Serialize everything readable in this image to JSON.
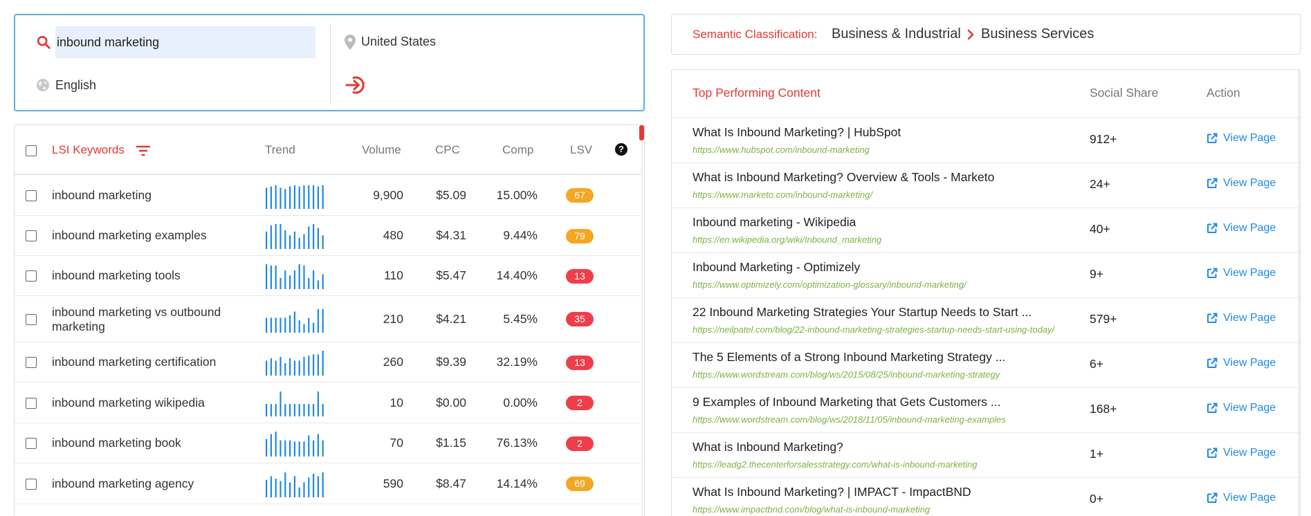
{
  "search": {
    "query": "inbound marketing",
    "location": "United States",
    "language": "English"
  },
  "lsi": {
    "headers": {
      "keywords": "LSI Keywords",
      "trend": "Trend",
      "volume": "Volume",
      "cpc": "CPC",
      "comp": "Comp",
      "lsv": "LSV"
    },
    "rows": [
      {
        "keyword": "inbound marketing",
        "volume": "9,900",
        "cpc": "$5.09",
        "comp": "15.00%",
        "lsv": "67",
        "lsv_color": "#f5a623",
        "trend": [
          0.85,
          0.9,
          0.95,
          0.85,
          0.8,
          0.9,
          0.95,
          0.9,
          0.95,
          0.95,
          0.95,
          0.9,
          0.95
        ]
      },
      {
        "keyword": "inbound marketing examples",
        "volume": "480",
        "cpc": "$4.31",
        "comp": "9.44%",
        "lsv": "79",
        "lsv_color": "#f5a623",
        "trend": [
          0.7,
          0.95,
          1.0,
          1.0,
          0.75,
          0.55,
          0.7,
          0.45,
          0.6,
          0.9,
          1.0,
          0.85,
          0.55
        ]
      },
      {
        "keyword": "inbound marketing tools",
        "volume": "110",
        "cpc": "$5.47",
        "comp": "14.40%",
        "lsv": "13",
        "lsv_color": "#ef3e4a",
        "trend": [
          1.0,
          0.95,
          0.95,
          0.45,
          0.75,
          0.55,
          0.75,
          1.0,
          0.95,
          0.45,
          0.75,
          0.35,
          0.6
        ]
      },
      {
        "keyword": "inbound marketing vs outbound marketing",
        "volume": "210",
        "cpc": "$4.21",
        "comp": "5.45%",
        "lsv": "35",
        "lsv_color": "#ef3e4a",
        "trend": [
          0.6,
          0.6,
          0.6,
          0.6,
          0.6,
          0.7,
          0.85,
          0.5,
          0.35,
          0.6,
          0.4,
          0.95,
          0.95
        ]
      },
      {
        "keyword": "inbound marketing certification",
        "volume": "260",
        "cpc": "$9.39",
        "comp": "32.19%",
        "lsv": "13",
        "lsv_color": "#ef3e4a",
        "trend": [
          0.6,
          0.7,
          0.6,
          0.75,
          0.5,
          0.7,
          0.6,
          0.6,
          0.75,
          0.8,
          0.85,
          0.85,
          1.0
        ]
      },
      {
        "keyword": "inbound marketing wikipedia",
        "volume": "10",
        "cpc": "$0.00",
        "comp": "0.00%",
        "lsv": "2",
        "lsv_color": "#ef3e4a",
        "trend": [
          0.5,
          0.5,
          0.5,
          1.0,
          0.5,
          0.5,
          0.5,
          0.5,
          0.5,
          0.5,
          0.5,
          1.0,
          0.5
        ]
      },
      {
        "keyword": "inbound marketing book",
        "volume": "70",
        "cpc": "$1.15",
        "comp": "76.13%",
        "lsv": "2",
        "lsv_color": "#ef3e4a",
        "trend": [
          0.7,
          0.9,
          1.0,
          0.65,
          0.65,
          0.65,
          0.6,
          0.6,
          0.6,
          0.85,
          0.65,
          0.9,
          0.65
        ]
      },
      {
        "keyword": "inbound marketing agency",
        "volume": "590",
        "cpc": "$8.47",
        "comp": "14.14%",
        "lsv": "69",
        "lsv_color": "#f5a623",
        "trend": [
          0.7,
          0.85,
          0.75,
          0.65,
          1.0,
          0.6,
          0.85,
          0.4,
          0.6,
          0.8,
          0.95,
          0.85,
          1.0
        ]
      }
    ]
  },
  "semantic": {
    "label": "Semantic Classification:",
    "category": "Business & Industrial",
    "subcategory": "Business Services"
  },
  "top_content": {
    "headers": {
      "title": "Top Performing Content",
      "share": "Social Share",
      "action": "Action"
    },
    "view_label": "View Page",
    "rows": [
      {
        "title": "What Is Inbound Marketing? | HubSpot",
        "url": "https://www.hubspot.com/inbound-marketing",
        "share": "912+"
      },
      {
        "title": "What is Inbound Marketing? Overview & Tools - Marketo",
        "url": "https://www.marketo.com/inbound-marketing/",
        "share": "24+"
      },
      {
        "title": "Inbound marketing - Wikipedia",
        "url": "https://en.wikipedia.org/wiki/Inbound_marketing",
        "share": "40+"
      },
      {
        "title": "Inbound Marketing - Optimizely",
        "url": "https://www.optimizely.com/optimization-glossary/inbound-marketing/",
        "share": "9+"
      },
      {
        "title": "22 Inbound Marketing Strategies Your Startup Needs to Start ...",
        "url": "https://neilpatel.com/blog/22-inbound-marketing-strategies-startup-needs-start-using-today/",
        "share": "579+"
      },
      {
        "title": "The 5 Elements of a Strong Inbound Marketing Strategy ...",
        "url": "https://www.wordstream.com/blog/ws/2015/08/25/inbound-marketing-strategy",
        "share": "6+"
      },
      {
        "title": "9 Examples of Inbound Marketing that Gets Customers ...",
        "url": "https://www.wordstream.com/blog/ws/2018/11/05/inbound-marketing-examples",
        "share": "168+"
      },
      {
        "title": "What is Inbound Marketing?",
        "url": "https://leadg2.thecenterforsalesstrategy.com/what-is-inbound-marketing",
        "share": "1+"
      },
      {
        "title": "What Is Inbound Marketing? | IMPACT - ImpactBND",
        "url": "https://www.impactbnd.com/blog/what-is-inbound-marketing",
        "share": "0+"
      }
    ]
  },
  "colors": {
    "accent_red": "#e53935",
    "link_blue": "#1e88e5",
    "url_green": "#7cb342",
    "trend_blue": "#1e88e5",
    "focus_border": "#5aaee8"
  }
}
